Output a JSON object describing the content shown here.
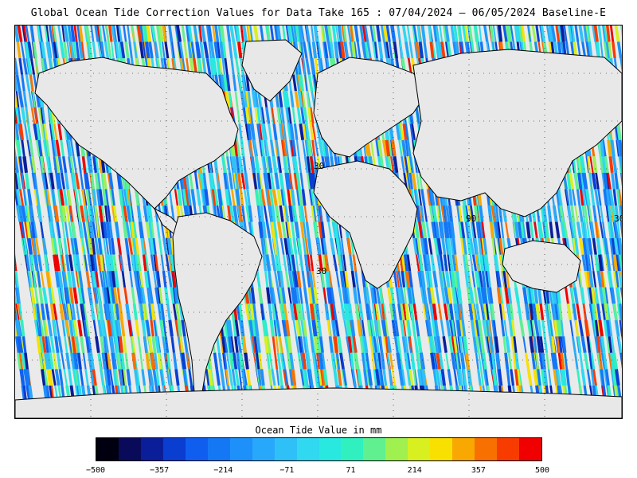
{
  "title": "Global Ocean Tide Correction Values for Data Take 165 : 07/04/2024 – 06/05/2024 Baseline-E",
  "map": {
    "grid_labels": [
      "30",
      "90",
      "30",
      "30"
    ],
    "land_color": "#e6e6e6",
    "grid": true
  },
  "colorbar": {
    "title": "Ocean Tide Value in mm",
    "min": -500,
    "max": 500,
    "tick_labels": [
      "−500",
      "−357",
      "−214",
      "−71",
      "71",
      "214",
      "357",
      "500"
    ],
    "colors": [
      "#000010",
      "#0a0a5a",
      "#0a1e9a",
      "#0a3ed0",
      "#0f5ef0",
      "#1478f5",
      "#1e90fa",
      "#28a8fa",
      "#30c0f8",
      "#30d8f0",
      "#28e8e0",
      "#30f0c0",
      "#60f090",
      "#a0f050",
      "#d8f020",
      "#f8e000",
      "#f8a800",
      "#f87000",
      "#f83c00",
      "#f00000"
    ]
  }
}
